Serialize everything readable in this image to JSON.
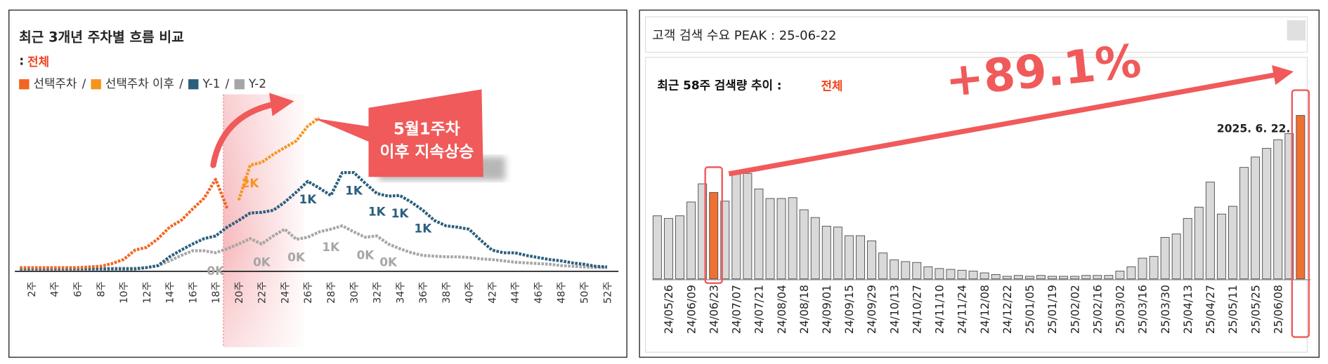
{
  "chart_data": [
    {
      "type": "line",
      "title": "최근 3개년 주차별 흐름 비교",
      "subtitle_separator": ":",
      "subtitle": "전체",
      "legend_separator": "/",
      "annotation_lines": [
        "5월1주차",
        "이후 지속상승"
      ],
      "categories": [
        null,
        "2주",
        null,
        "4주",
        null,
        "6주",
        null,
        "8주",
        null,
        "10주",
        null,
        "12주",
        null,
        "14주",
        null,
        "16주",
        null,
        "18주",
        null,
        "20주",
        null,
        "22주",
        null,
        "24주",
        null,
        "26주",
        null,
        "28주",
        null,
        "30주",
        null,
        "32주",
        null,
        "34주",
        null,
        "36주",
        null,
        "38주",
        null,
        "40주",
        null,
        "42주",
        null,
        "44주",
        null,
        "46주",
        null,
        "48주",
        null,
        "50주",
        null,
        "52주"
      ],
      "series": [
        {
          "name": "Y-2",
          "color": "#a6a6a6",
          "values": [
            0.02,
            0.02,
            0.02,
            0.02,
            0.02,
            0.02,
            0.02,
            0.02,
            0.02,
            0.02,
            0.02,
            0.03,
            0.06,
            0.13,
            0.21,
            0.28,
            0.28,
            0.25,
            0.31,
            0.38,
            0.46,
            0.38,
            0.5,
            0.6,
            0.45,
            0.48,
            0.56,
            0.6,
            0.65,
            0.56,
            0.48,
            0.5,
            0.38,
            0.31,
            0.25,
            0.21,
            0.2,
            0.19,
            0.19,
            0.18,
            0.16,
            0.15,
            0.13,
            0.11,
            0.1,
            0.09,
            0.08,
            0.06,
            0.05,
            0.04,
            0.03,
            0.03
          ],
          "value_labels": [
            null,
            null,
            null,
            null,
            null,
            null,
            null,
            null,
            null,
            null,
            null,
            null,
            null,
            null,
            null,
            null,
            null,
            "0K",
            null,
            null,
            null,
            "0K",
            null,
            null,
            "0K",
            null,
            null,
            "1K",
            null,
            null,
            "0K",
            null,
            "0K",
            null,
            null,
            null,
            null,
            null,
            null,
            null,
            null,
            null,
            null,
            null,
            null,
            null,
            null,
            null,
            null,
            null,
            null,
            null
          ]
        },
        {
          "name": "Y-1",
          "color": "#2b5f7e",
          "values": [
            0.01,
            0.01,
            0.01,
            0.01,
            0.01,
            0.01,
            0.01,
            0.01,
            0.01,
            0.01,
            0.01,
            0.03,
            0.06,
            0.19,
            0.29,
            0.38,
            0.46,
            0.5,
            0.63,
            0.73,
            0.84,
            0.85,
            0.88,
            1.0,
            1.15,
            1.31,
            1.21,
            1.1,
            1.44,
            1.44,
            1.28,
            1.13,
            1.09,
            1.1,
            1.0,
            0.88,
            0.73,
            0.65,
            0.63,
            0.6,
            0.44,
            0.29,
            0.25,
            0.25,
            0.21,
            0.18,
            0.15,
            0.13,
            0.1,
            0.08,
            0.05,
            0.04
          ],
          "value_labels": [
            null,
            null,
            null,
            null,
            null,
            null,
            null,
            null,
            null,
            null,
            null,
            null,
            null,
            null,
            null,
            null,
            null,
            null,
            null,
            null,
            null,
            null,
            null,
            null,
            null,
            "1K",
            null,
            null,
            null,
            "1K",
            null,
            "1K",
            null,
            "1K",
            null,
            "1K",
            null,
            null,
            null,
            null,
            null,
            null,
            null,
            null,
            null,
            null,
            null,
            null,
            null,
            null,
            null,
            null
          ]
        },
        {
          "name": "선택주차",
          "color": "#f26522",
          "values": [
            0.03,
            0.03,
            0.03,
            0.03,
            0.03,
            0.03,
            0.04,
            0.05,
            0.09,
            0.15,
            0.29,
            0.33,
            0.46,
            0.63,
            0.73,
            0.9,
            1.06,
            1.34,
            0.91,
            null,
            null,
            null,
            null,
            null,
            null,
            null,
            null,
            null,
            null,
            null,
            null,
            null,
            null,
            null,
            null,
            null,
            null,
            null,
            null,
            null,
            null,
            null,
            null,
            null,
            null,
            null,
            null,
            null,
            null,
            null,
            null,
            null
          ]
        },
        {
          "name": "선택주차 이후",
          "color": "#f7941d",
          "values": [
            null,
            null,
            null,
            null,
            null,
            null,
            null,
            null,
            null,
            null,
            null,
            null,
            null,
            null,
            null,
            null,
            null,
            null,
            null,
            1.03,
            1.55,
            1.59,
            1.71,
            1.81,
            1.91,
            2.13,
            2.25,
            null,
            null,
            null,
            null,
            null,
            null,
            null,
            null,
            null,
            null,
            null,
            null,
            null,
            null,
            null,
            null,
            null,
            null,
            null,
            null,
            null,
            null,
            null,
            null,
            null
          ],
          "value_labels": [
            null,
            null,
            null,
            null,
            null,
            null,
            null,
            null,
            null,
            null,
            null,
            null,
            null,
            null,
            null,
            null,
            null,
            null,
            null,
            null,
            "2K",
            null,
            null,
            null,
            null,
            null,
            null,
            null,
            null,
            null,
            null,
            null,
            null,
            null,
            null,
            null,
            null,
            null,
            null,
            null,
            null,
            null,
            null,
            null,
            null,
            null,
            null,
            null,
            null,
            null,
            null,
            null
          ]
        }
      ],
      "legend_order": [
        2,
        3,
        1,
        0
      ]
    },
    {
      "type": "bar",
      "header": "고객 검색 수요 PEAK : 25-06-22",
      "title": "최근 58주 검색량 추이 :",
      "subtitle": "전체",
      "annotation": "+89.1%",
      "peak_label": "2025. 6. 22.",
      "color": "#d9d9d9",
      "highlight": {
        "color": "#f07030",
        "indices": [
          5,
          57
        ]
      },
      "categories": [
        null,
        "24/05/26",
        null,
        "24/06/09",
        null,
        "24/06/23",
        null,
        "24/07/07",
        null,
        "24/07/21",
        null,
        "24/08/04",
        null,
        "24/08/18",
        null,
        "24/09/01",
        null,
        "24/09/15",
        null,
        "24/09/29",
        null,
        "24/10/13",
        null,
        "24/10/27",
        null,
        "24/11/10",
        null,
        "24/11/24",
        null,
        "24/12/08",
        null,
        "24/12/22",
        null,
        "25/01/05",
        null,
        "25/01/19",
        null,
        "25/02/02",
        null,
        "25/02/16",
        null,
        "25/03/02",
        null,
        "25/03/16",
        null,
        "25/03/30",
        null,
        "25/04/13",
        null,
        "25/04/27",
        null,
        "25/05/11",
        null,
        "25/05/25",
        null,
        "25/06/08",
        null,
        null
      ],
      "values": [
        73,
        70,
        73,
        89,
        110,
        100,
        90,
        121,
        122,
        104,
        93,
        93,
        94,
        80,
        71,
        61,
        60,
        50,
        50,
        44,
        30,
        22,
        20,
        19,
        14,
        12,
        11,
        10,
        9,
        7,
        5,
        3,
        4,
        3,
        4,
        3,
        3,
        3,
        4,
        4,
        4,
        9,
        14,
        24,
        26,
        48,
        52,
        70,
        83,
        112,
        75,
        84,
        129,
        141,
        151,
        161,
        168,
        189.1
      ]
    }
  ]
}
